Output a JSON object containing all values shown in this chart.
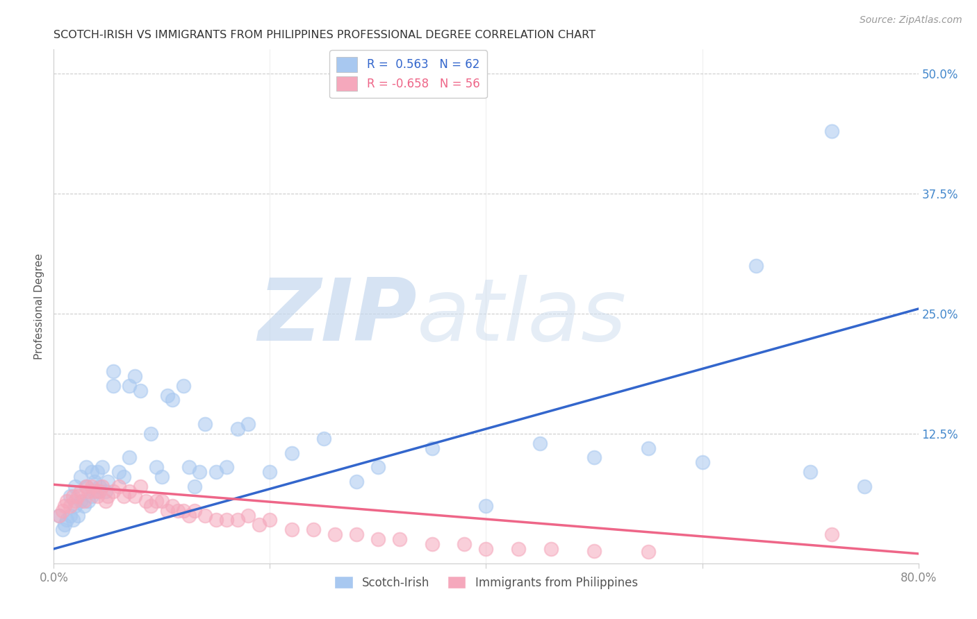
{
  "title": "SCOTCH-IRISH VS IMMIGRANTS FROM PHILIPPINES PROFESSIONAL DEGREE CORRELATION CHART",
  "source": "Source: ZipAtlas.com",
  "ylabel": "Professional Degree",
  "xlim": [
    0.0,
    0.8
  ],
  "ylim": [
    -0.01,
    0.525
  ],
  "yticks": [
    0.0,
    0.125,
    0.25,
    0.375,
    0.5
  ],
  "yticklabels": [
    "",
    "12.5%",
    "25.0%",
    "37.5%",
    "50.0%"
  ],
  "xtick_positions": [
    0.0,
    0.2,
    0.4,
    0.6,
    0.8
  ],
  "legend_label1": "Scotch-Irish",
  "legend_label2": "Immigrants from Philippines",
  "R1": 0.563,
  "N1": 62,
  "R2": -0.658,
  "N2": 56,
  "color_blue": "#A8C8F0",
  "color_pink": "#F5A8BC",
  "line_blue": "#3366CC",
  "line_pink": "#EE6688",
  "watermark_zip": "ZIP",
  "watermark_atlas": "atlas",
  "title_color": "#333333",
  "ylabel_color": "#333333",
  "tick_color_right": "#4488CC",
  "tick_color_x": "#888888",
  "grid_color": "#CCCCCC",
  "scatter_blue_x": [
    0.005,
    0.008,
    0.01,
    0.012,
    0.015,
    0.015,
    0.018,
    0.02,
    0.02,
    0.022,
    0.025,
    0.025,
    0.028,
    0.03,
    0.03,
    0.032,
    0.035,
    0.035,
    0.038,
    0.04,
    0.04,
    0.042,
    0.045,
    0.048,
    0.05,
    0.055,
    0.055,
    0.06,
    0.065,
    0.07,
    0.07,
    0.075,
    0.08,
    0.09,
    0.095,
    0.1,
    0.105,
    0.11,
    0.12,
    0.125,
    0.13,
    0.135,
    0.14,
    0.15,
    0.16,
    0.17,
    0.18,
    0.2,
    0.22,
    0.25,
    0.28,
    0.3,
    0.35,
    0.4,
    0.45,
    0.5,
    0.55,
    0.6,
    0.65,
    0.7,
    0.72,
    0.75
  ],
  "scatter_blue_y": [
    0.04,
    0.025,
    0.03,
    0.035,
    0.04,
    0.06,
    0.035,
    0.05,
    0.07,
    0.04,
    0.055,
    0.08,
    0.05,
    0.07,
    0.09,
    0.055,
    0.06,
    0.085,
    0.075,
    0.065,
    0.085,
    0.07,
    0.09,
    0.065,
    0.075,
    0.19,
    0.175,
    0.085,
    0.08,
    0.1,
    0.175,
    0.185,
    0.17,
    0.125,
    0.09,
    0.08,
    0.165,
    0.16,
    0.175,
    0.09,
    0.07,
    0.085,
    0.135,
    0.085,
    0.09,
    0.13,
    0.135,
    0.085,
    0.105,
    0.12,
    0.075,
    0.09,
    0.11,
    0.05,
    0.115,
    0.1,
    0.11,
    0.095,
    0.3,
    0.085,
    0.44,
    0.07
  ],
  "scatter_pink_x": [
    0.005,
    0.008,
    0.01,
    0.012,
    0.015,
    0.018,
    0.02,
    0.022,
    0.025,
    0.028,
    0.03,
    0.032,
    0.035,
    0.038,
    0.04,
    0.042,
    0.045,
    0.048,
    0.05,
    0.055,
    0.06,
    0.065,
    0.07,
    0.075,
    0.08,
    0.085,
    0.09,
    0.095,
    0.1,
    0.105,
    0.11,
    0.115,
    0.12,
    0.125,
    0.13,
    0.14,
    0.15,
    0.16,
    0.17,
    0.18,
    0.19,
    0.2,
    0.22,
    0.24,
    0.26,
    0.28,
    0.3,
    0.32,
    0.35,
    0.38,
    0.4,
    0.43,
    0.46,
    0.5,
    0.55,
    0.72
  ],
  "scatter_pink_y": [
    0.04,
    0.045,
    0.05,
    0.055,
    0.05,
    0.06,
    0.055,
    0.06,
    0.065,
    0.055,
    0.07,
    0.065,
    0.07,
    0.065,
    0.06,
    0.065,
    0.07,
    0.055,
    0.06,
    0.065,
    0.07,
    0.06,
    0.065,
    0.06,
    0.07,
    0.055,
    0.05,
    0.055,
    0.055,
    0.045,
    0.05,
    0.045,
    0.045,
    0.04,
    0.045,
    0.04,
    0.035,
    0.035,
    0.035,
    0.04,
    0.03,
    0.035,
    0.025,
    0.025,
    0.02,
    0.02,
    0.015,
    0.015,
    0.01,
    0.01,
    0.005,
    0.005,
    0.005,
    0.003,
    0.002,
    0.02
  ],
  "blue_line_x": [
    0.0,
    0.8
  ],
  "blue_line_y": [
    0.005,
    0.255
  ],
  "pink_line_x": [
    0.0,
    0.8
  ],
  "pink_line_y": [
    0.072,
    0.0
  ],
  "marker_size": 200
}
